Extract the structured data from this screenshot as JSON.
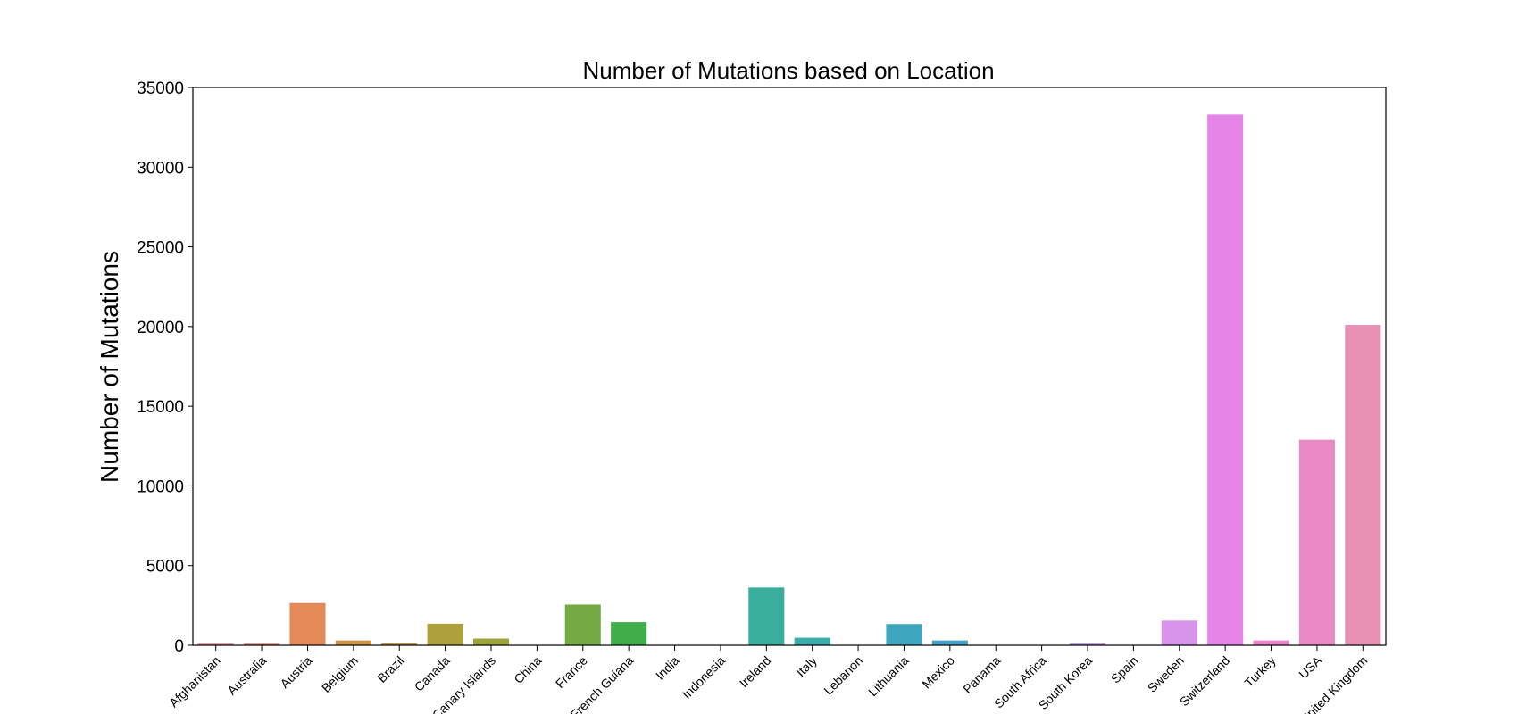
{
  "chart_data": {
    "type": "bar",
    "title": "Number of Mutations based on Location",
    "xlabel": "",
    "ylabel": "Number of Mutations",
    "ylim": [
      0,
      35000
    ],
    "yticks": [
      0,
      5000,
      10000,
      15000,
      20000,
      25000,
      30000,
      35000
    ],
    "grid": false,
    "categories": [
      "Afghanistan",
      "Australia",
      "Austria",
      "Belgium",
      "Brazil",
      "Canada",
      "Canary Islands",
      "China",
      "France",
      "French Guiana",
      "India",
      "Indonesia",
      "Ireland",
      "Italy",
      "Lebanon",
      "Lithuania",
      "Mexico",
      "Panama",
      "South Africa",
      "South Korea",
      "Spain",
      "Sweden",
      "Switzerland",
      "Turkey",
      "USA",
      "United Kingdom"
    ],
    "values": [
      100,
      100,
      2650,
      300,
      120,
      1350,
      420,
      10,
      2550,
      1450,
      10,
      10,
      3620,
      470,
      10,
      1330,
      300,
      20,
      20,
      100,
      20,
      1550,
      33300,
      300,
      12900,
      20100
    ],
    "colors": [
      "#f27c94",
      "#ee7f6f",
      "#e48a58",
      "#d29447",
      "#c19a3b",
      "#aea13c",
      "#9da43a",
      "#8aa839",
      "#74a943",
      "#3fae4a",
      "#35b17a",
      "#36b08f",
      "#39ae9c",
      "#3aacaa",
      "#3cabb4",
      "#3ea7bf",
      "#44a1cc",
      "#5a9ad9",
      "#8e8ee5",
      "#b384e8",
      "#cd83e8",
      "#d793e9",
      "#e585e8",
      "#e984cf",
      "#e98ac4",
      "#e991b4"
    ]
  }
}
